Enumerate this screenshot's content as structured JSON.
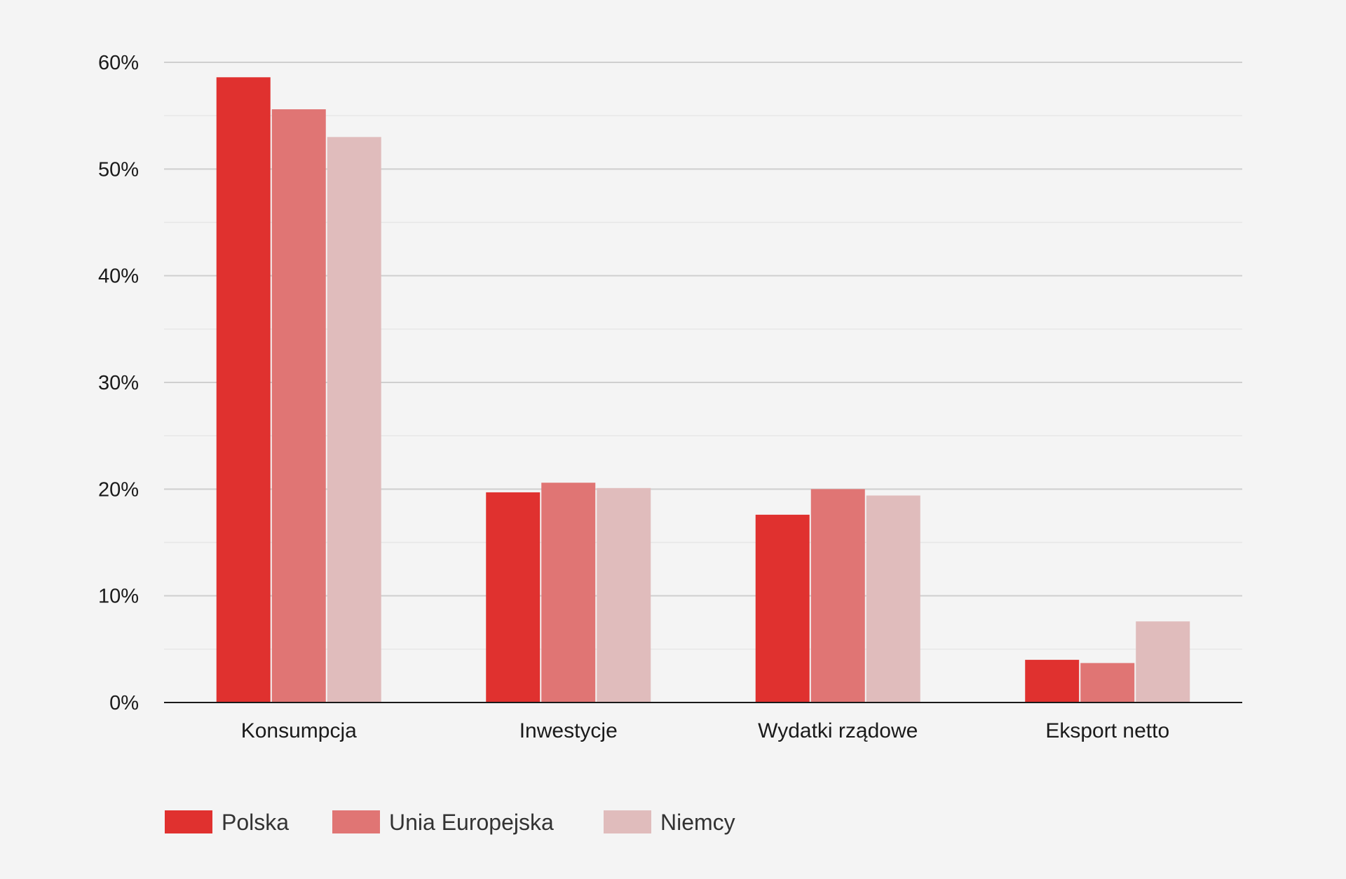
{
  "chart_data": {
    "type": "bar",
    "title": "",
    "xlabel": "",
    "ylabel": "",
    "categories": [
      "Konsumpcja",
      "Inwestycje",
      "Wydatki rządowe",
      "Eksport netto"
    ],
    "series": [
      {
        "name": "Polska",
        "color": "#e0312f",
        "values": [
          58.6,
          19.7,
          17.6,
          4.0
        ]
      },
      {
        "name": "Unia Europejska",
        "color": "#e07574",
        "values": [
          55.6,
          20.6,
          20.0,
          3.7
        ]
      },
      {
        "name": "Niemcy",
        "color": "#e0bcbc",
        "values": [
          53.0,
          20.1,
          19.4,
          7.6
        ]
      }
    ],
    "ylim": [
      0,
      60
    ],
    "yticks": [
      0,
      10,
      20,
      30,
      40,
      50,
      60
    ],
    "ytick_labels": [
      "0%",
      "10%",
      "20%",
      "30%",
      "40%",
      "50%",
      "60%"
    ],
    "grid": true,
    "minor_grid": true,
    "legend_position": "bottom-left"
  }
}
